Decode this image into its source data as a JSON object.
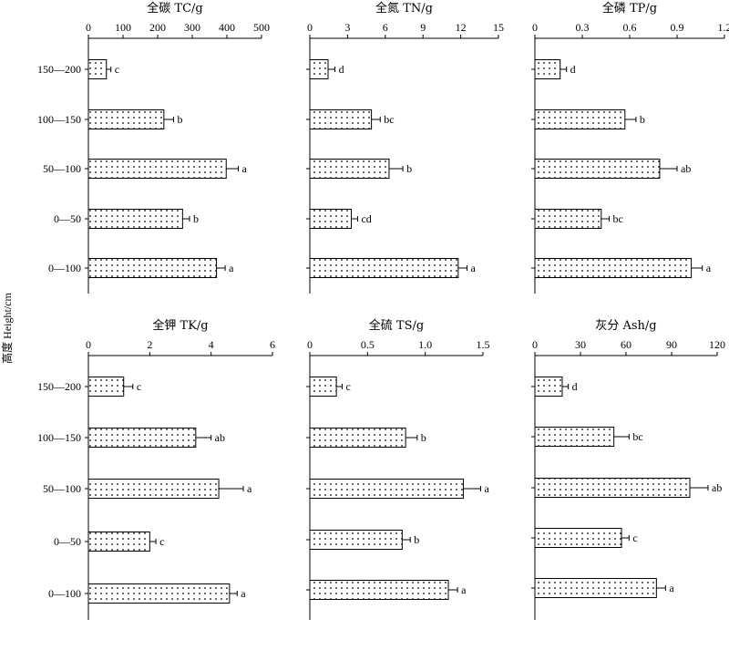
{
  "y_axis_label": "高度 Height/cm",
  "categories": [
    "150—200",
    "100—150",
    "50—100",
    "0—50",
    "0—100"
  ],
  "chart_data": [
    {
      "type": "bar",
      "title": "全碳 TC/g",
      "xlim": [
        0,
        500
      ],
      "ticks": [
        0,
        100,
        200,
        300,
        400,
        500
      ],
      "tick_labels": [
        "0",
        "100",
        "200",
        "300",
        "400",
        "500"
      ],
      "values": [
        52,
        218,
        398,
        272,
        370
      ],
      "errors": [
        13,
        28,
        35,
        20,
        25
      ],
      "labels": [
        "c",
        "b",
        "a",
        "b",
        "a"
      ]
    },
    {
      "type": "bar",
      "title": "全氮 TN/g",
      "xlim": [
        0,
        15
      ],
      "ticks": [
        0,
        3,
        6,
        9,
        12,
        15
      ],
      "tick_labels": [
        "0",
        "3",
        "6",
        "9",
        "12",
        "15"
      ],
      "values": [
        1.45,
        4.9,
        6.3,
        3.3,
        11.8
      ],
      "errors": [
        0.55,
        0.7,
        1.1,
        0.5,
        0.7
      ],
      "labels": [
        "d",
        "bc",
        "b",
        "cd",
        "a"
      ]
    },
    {
      "type": "bar",
      "title": "全磷 TP/g",
      "xlim": [
        0,
        1.2
      ],
      "ticks": [
        0,
        0.3,
        0.6,
        0.9,
        1.2
      ],
      "tick_labels": [
        "0",
        "0.3",
        "0.6",
        "0.9",
        "1.2"
      ],
      "values": [
        0.16,
        0.57,
        0.79,
        0.42,
        0.99
      ],
      "errors": [
        0.04,
        0.07,
        0.11,
        0.05,
        0.07
      ],
      "labels": [
        "d",
        "b",
        "ab",
        "bc",
        "a"
      ]
    },
    {
      "type": "bar",
      "title": "全钾 TK/g",
      "xlim": [
        0,
        6
      ],
      "ticks": [
        0,
        2,
        4,
        6
      ],
      "tick_labels": [
        "0",
        "2",
        "4",
        "6"
      ],
      "values": [
        1.15,
        3.5,
        4.25,
        2.0,
        4.6
      ],
      "errors": [
        0.3,
        0.5,
        0.8,
        0.2,
        0.25
      ],
      "labels": [
        "c",
        "ab",
        "a",
        "c",
        "a"
      ]
    },
    {
      "type": "bar",
      "title": "全硫 TS/g",
      "xlim": [
        0,
        1.5
      ],
      "ticks": [
        0,
        0.5,
        1.0,
        1.5
      ],
      "tick_labels": [
        "0",
        "0.5",
        "1.0",
        "1.5"
      ],
      "values": [
        0.23,
        0.83,
        1.33,
        0.8,
        1.2
      ],
      "errors": [
        0.05,
        0.1,
        0.15,
        0.07,
        0.08
      ],
      "labels": [
        "c",
        "b",
        "a",
        "b",
        "a"
      ]
    },
    {
      "type": "bar",
      "title": "灰分 Ash/g",
      "xlim": [
        0,
        120
      ],
      "ticks": [
        0,
        30,
        60,
        90,
        120
      ],
      "tick_labels": [
        "0",
        "30",
        "60",
        "90",
        "120"
      ],
      "values": [
        18,
        52,
        102,
        57,
        80
      ],
      "errors": [
        4,
        10,
        12,
        5,
        6
      ],
      "labels": [
        "d",
        "bc",
        "ab",
        "c",
        "a"
      ]
    }
  ]
}
